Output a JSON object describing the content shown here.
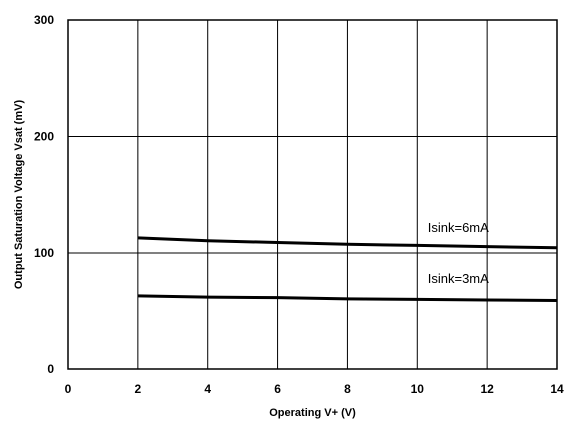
{
  "chart_data": {
    "type": "line",
    "title": "",
    "xlabel": "Operating  V+ (V)",
    "ylabel": "Output Saturation Voltage  Vsat  (mV)",
    "xlim": [
      0,
      14
    ],
    "ylim": [
      0,
      300
    ],
    "x_ticks": [
      0,
      2,
      4,
      6,
      8,
      10,
      12,
      14
    ],
    "y_ticks": [
      0,
      100,
      200,
      300
    ],
    "y_scale": "nonlinear (0–100 span compressed, 100–300 linear)",
    "grid": true,
    "legend": "none",
    "series": [
      {
        "x": [
          2,
          4,
          6,
          8,
          10,
          12,
          14
        ],
        "values": [
          113,
          110.5,
          109,
          107.5,
          106.5,
          105.5,
          104.5
        ],
        "color": "#000000"
      },
      {
        "x": [
          2,
          4,
          6,
          8,
          10,
          12,
          14
        ],
        "values": [
          63,
          62,
          61.5,
          60.5,
          60,
          59.5,
          59
        ],
        "color": "#000000"
      }
    ],
    "annotations": [
      {
        "text": "Isink=6mA",
        "x": 10.3,
        "y": 118
      },
      {
        "text": "Isink=3mA",
        "x": 10.3,
        "y": 74
      }
    ]
  }
}
